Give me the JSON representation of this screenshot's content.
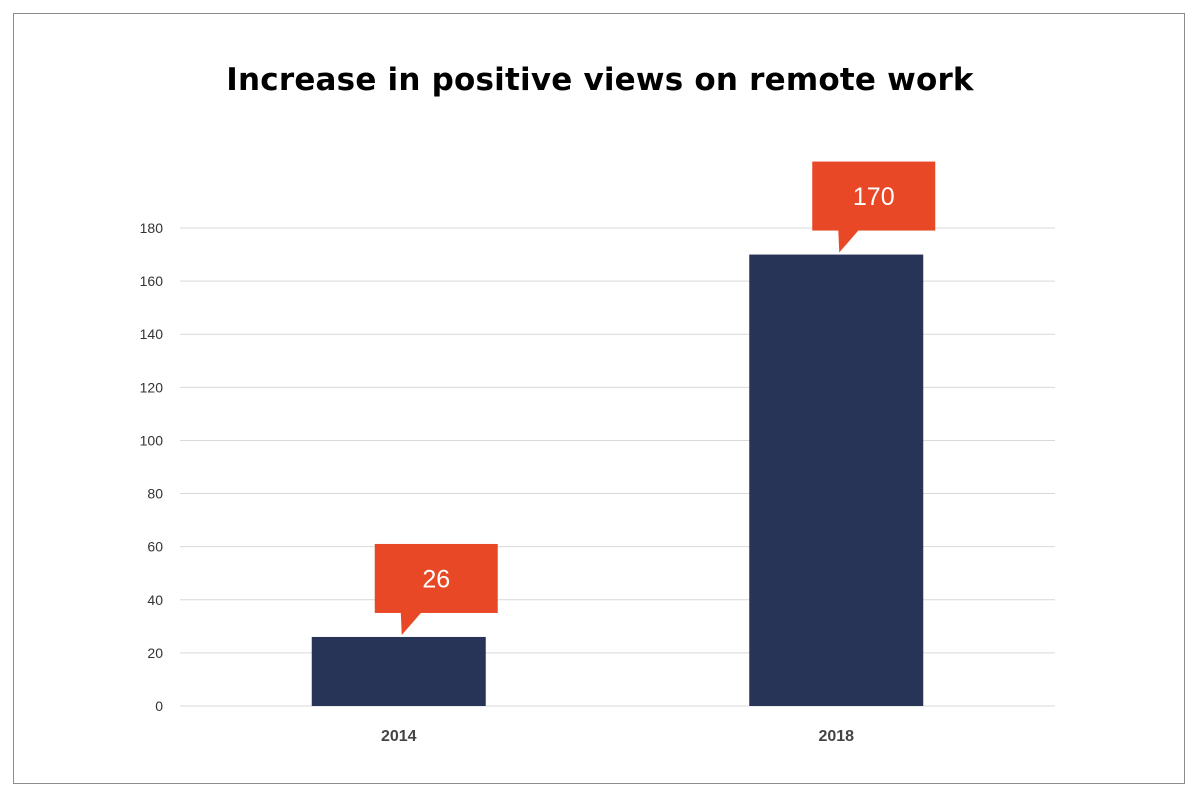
{
  "chart_data": {
    "type": "bar",
    "title": "Increase in positive views on remote work",
    "categories": [
      "2014",
      "2018"
    ],
    "values": [
      26,
      170
    ],
    "data_labels": [
      "26",
      "170"
    ],
    "xlabel": "",
    "ylabel": "",
    "ylim": [
      0,
      180
    ],
    "yticks": [
      0,
      20,
      40,
      60,
      80,
      100,
      120,
      140,
      160,
      180
    ],
    "grid": true,
    "legend": "none",
    "colors": {
      "bar": "#273457",
      "callout": "#e84826",
      "grid": "#d9d9d9"
    }
  }
}
